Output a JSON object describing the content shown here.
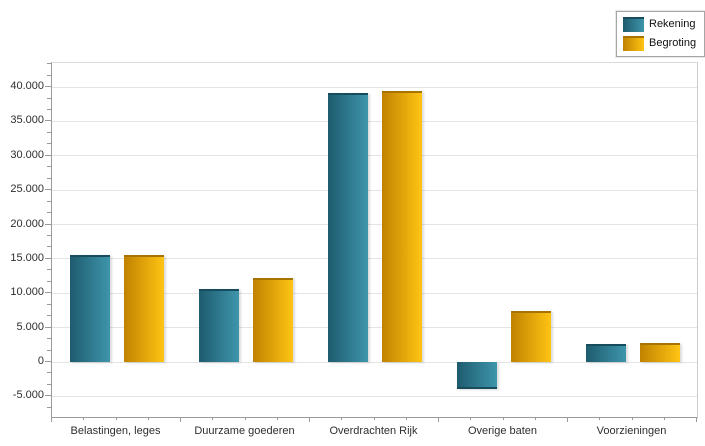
{
  "chart_data": {
    "type": "bar",
    "title": "",
    "xlabel": "",
    "ylabel": "",
    "grid": true,
    "legend_position": "top-right",
    "categories": [
      "Belastingen, leges",
      "Duurzame goederen",
      "Overdrachten Rijk",
      "Overige baten",
      "Voorzieningen"
    ],
    "series": [
      {
        "name": "Rekening",
        "values": [
          15500,
          10600,
          39200,
          -4000,
          2600
        ],
        "color_dark": "#1e5b6e",
        "color_light": "#3e95ab",
        "edge_color": "#174c5c"
      },
      {
        "name": "Begroting",
        "values": [
          15500,
          12250,
          39400,
          7400,
          2700
        ],
        "color_dark": "#c08200",
        "color_light": "#ffc414",
        "edge_color": "#a87400"
      }
    ],
    "ylim": [
      -8000,
      43500
    ],
    "ytick_step": 5000,
    "yticks": [
      {
        "value": -5000,
        "label": "-5.000"
      },
      {
        "value": 0,
        "label": "0"
      },
      {
        "value": 5000,
        "label": "5.000"
      },
      {
        "value": 10000,
        "label": "10.000"
      },
      {
        "value": 15000,
        "label": "15.000"
      },
      {
        "value": 20000,
        "label": "20.000"
      },
      {
        "value": 25000,
        "label": "25.000"
      },
      {
        "value": 30000,
        "label": "30.000"
      },
      {
        "value": 35000,
        "label": "35.000"
      },
      {
        "value": 40000,
        "label": "40.000"
      }
    ]
  }
}
